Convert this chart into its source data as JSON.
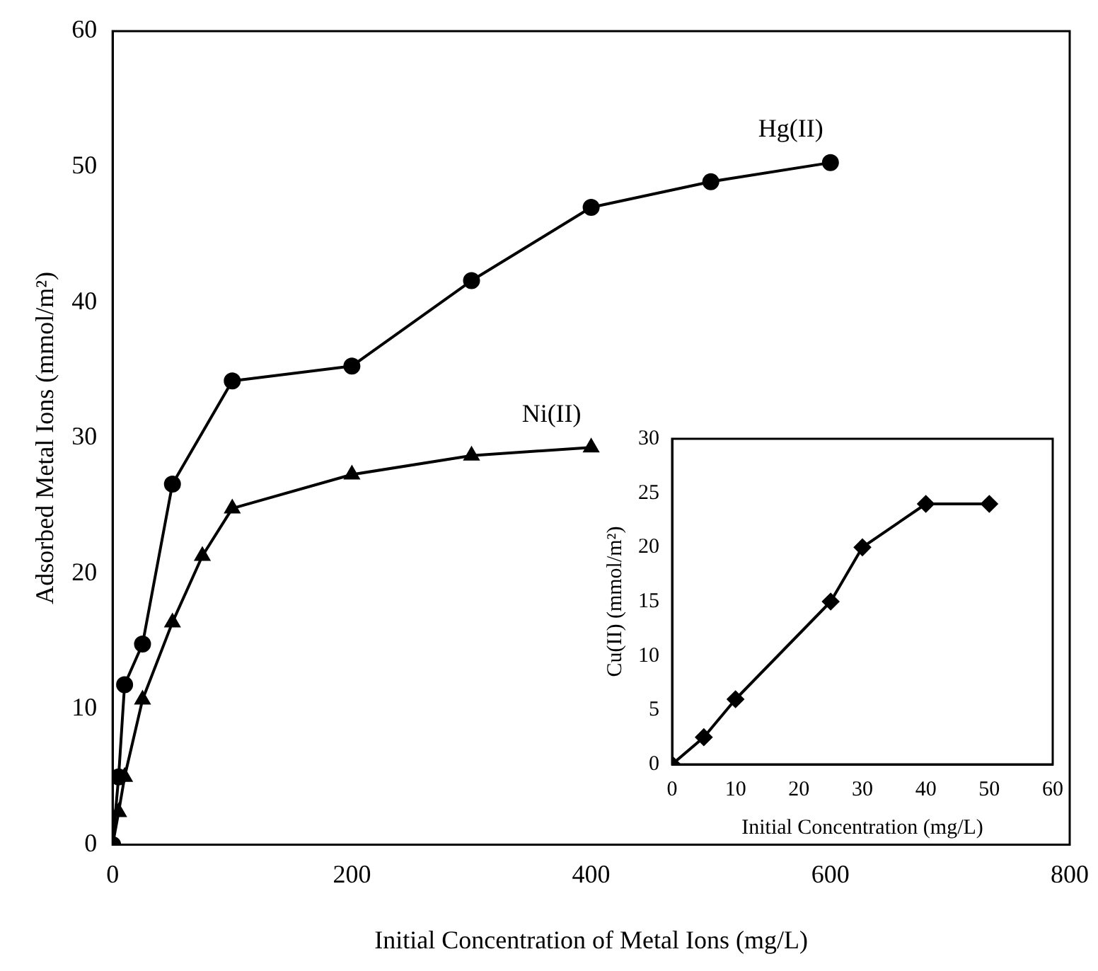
{
  "chart_data": [
    {
      "type": "line",
      "xlabel": "Initial Concentration of Metal Ions (mg/L)",
      "ylabel": "Adsorbed Metal Ions (mmol/m²)",
      "xlim": [
        0,
        800
      ],
      "ylim": [
        0,
        60
      ],
      "xticks": [
        0,
        200,
        400,
        600,
        800
      ],
      "yticks": [
        0,
        10,
        20,
        30,
        40,
        50,
        60
      ],
      "series": [
        {
          "name": "Hg(II)",
          "color": "#000000",
          "marker": "circle",
          "x": [
            0,
            5,
            10,
            25,
            50,
            100,
            200,
            300,
            400,
            500,
            600
          ],
          "values": [
            0,
            5,
            11.8,
            14.8,
            26.6,
            34.2,
            35.3,
            41.6,
            47,
            48.9,
            50.3
          ]
        },
        {
          "name": "Ni(II)",
          "color": "#000000",
          "marker": "triangle",
          "x": [
            0,
            5,
            10,
            25,
            50,
            75,
            100,
            200,
            300,
            400
          ],
          "values": [
            0,
            2.4,
            5,
            10.7,
            16.4,
            21.3,
            24.8,
            27.3,
            28.7,
            29.3
          ]
        }
      ]
    },
    {
      "type": "line",
      "xlabel": "Initial Concentration (mg/L)",
      "ylabel": "Cu(II) (mmol/m²)",
      "xlim": [
        0,
        60
      ],
      "ylim": [
        0,
        30
      ],
      "xticks": [
        0,
        10,
        20,
        30,
        40,
        50,
        60
      ],
      "yticks": [
        0,
        5,
        10,
        15,
        20,
        25,
        30
      ],
      "series": [
        {
          "color": "#000000",
          "marker": "diamond",
          "x": [
            0,
            5,
            10,
            25,
            30,
            40,
            50
          ],
          "values": [
            0,
            2.5,
            6,
            15,
            20,
            24,
            24
          ]
        }
      ]
    }
  ]
}
